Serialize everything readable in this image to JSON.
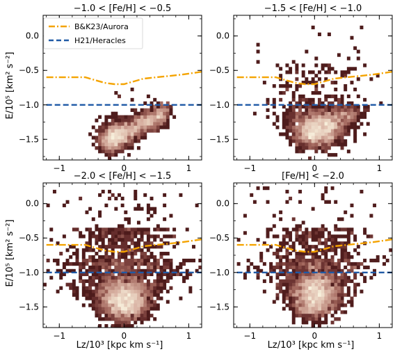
{
  "figure": {
    "shared_xlabel": "Lz/10³ [kpc km s⁻¹]",
    "shared_ylabel": "E/10⁵ [km² s⁻²]"
  },
  "legend": {
    "aurora_label": "B&K23/Aurora",
    "heracles_label": "H21/Heracles"
  },
  "chart_data": [
    {
      "type": "heatmap",
      "title": "−1.0 < [Fe/H] < −0.5",
      "xlabel": "",
      "ylabel": "E/10⁵ [km² s⁻²]",
      "xlim": [
        -1.25,
        1.2
      ],
      "ylim": [
        -1.8,
        0.3
      ],
      "xticks": [
        "−1",
        "0",
        "1"
      ],
      "yticks": [
        "0.0",
        "−0.5",
        "−1.0",
        "−1.5"
      ],
      "grid": false,
      "legend_position": "top-left",
      "series": [
        {
          "name": "B&K23/Aurora",
          "style": "dash-dot",
          "color": "#f4a300",
          "x": [
            -1.2,
            -0.6,
            -0.45,
            -0.3,
            -0.15,
            0.0,
            0.15,
            0.3,
            0.5,
            0.7,
            0.9,
            1.2
          ],
          "y": [
            -0.6,
            -0.6,
            -0.64,
            -0.68,
            -0.7,
            -0.7,
            -0.66,
            -0.62,
            -0.6,
            -0.58,
            -0.56,
            -0.52
          ]
        },
        {
          "name": "H21/Heracles",
          "style": "dashed",
          "color": "#1f5aa6",
          "x": [
            -1.2,
            1.2
          ],
          "y": [
            -1.0,
            -1.0
          ]
        }
      ],
      "density": {
        "mode": "metal_rich_band"
      }
    },
    {
      "type": "heatmap",
      "title": "−1.5 < [Fe/H] < −1.0",
      "xlabel": "",
      "ylabel": "",
      "xlim": [
        -1.25,
        1.2
      ],
      "ylim": [
        -1.8,
        0.3
      ],
      "xticks": [
        "−1",
        "0",
        "1"
      ],
      "yticks": [
        "0.0",
        "−0.5",
        "−1.0",
        "−1.5"
      ],
      "grid": false,
      "series": [
        {
          "name": "B&K23/Aurora",
          "style": "dash-dot",
          "color": "#f4a300",
          "x": [
            -1.2,
            -0.6,
            -0.45,
            -0.3,
            -0.15,
            0.0,
            0.15,
            0.3,
            0.5,
            0.7,
            0.9,
            1.2
          ],
          "y": [
            -0.6,
            -0.6,
            -0.64,
            -0.68,
            -0.7,
            -0.7,
            -0.66,
            -0.62,
            -0.6,
            -0.58,
            -0.56,
            -0.52
          ]
        },
        {
          "name": "H21/Heracles",
          "style": "dashed",
          "color": "#1f5aa6",
          "x": [
            -1.2,
            1.2
          ],
          "y": [
            -1.0,
            -1.0
          ]
        }
      ],
      "density": {
        "mode": "intermediate"
      }
    },
    {
      "type": "heatmap",
      "title": "−2.0 < [Fe/H] < −1.5",
      "xlabel": "Lz/10³ [kpc km s⁻¹]",
      "ylabel": "E/10⁵ [km² s⁻²]",
      "xlim": [
        -1.25,
        1.2
      ],
      "ylim": [
        -1.8,
        0.3
      ],
      "xticks": [
        "−1",
        "0",
        "1"
      ],
      "yticks": [
        "0.0",
        "−0.5",
        "−1.0",
        "−1.5"
      ],
      "grid": false,
      "series": [
        {
          "name": "B&K23/Aurora",
          "style": "dash-dot",
          "color": "#f4a300",
          "x": [
            -1.2,
            -0.6,
            -0.45,
            -0.3,
            -0.15,
            0.0,
            0.15,
            0.3,
            0.5,
            0.7,
            0.9,
            1.2
          ],
          "y": [
            -0.6,
            -0.6,
            -0.64,
            -0.68,
            -0.7,
            -0.7,
            -0.66,
            -0.62,
            -0.6,
            -0.58,
            -0.56,
            -0.52
          ]
        },
        {
          "name": "H21/Heracles",
          "style": "dashed",
          "color": "#1f5aa6",
          "x": [
            -1.2,
            1.2
          ],
          "y": [
            -1.0,
            -1.0
          ]
        }
      ],
      "density": {
        "mode": "metal_poor"
      }
    },
    {
      "type": "heatmap",
      "title": "[Fe/H] < −2.0",
      "xlabel": "Lz/10³ [kpc km s⁻¹]",
      "ylabel": "",
      "xlim": [
        -1.25,
        1.2
      ],
      "ylim": [
        -1.8,
        0.3
      ],
      "xticks": [
        "−1",
        "0",
        "1"
      ],
      "yticks": [
        "0.0",
        "−0.5",
        "−1.0",
        "−1.5"
      ],
      "grid": false,
      "series": [
        {
          "name": "B&K23/Aurora",
          "style": "dash-dot",
          "color": "#f4a300",
          "x": [
            -1.2,
            -0.6,
            -0.45,
            -0.3,
            -0.15,
            0.0,
            0.15,
            0.3,
            0.5,
            0.7,
            0.9,
            1.2
          ],
          "y": [
            -0.6,
            -0.6,
            -0.64,
            -0.68,
            -0.7,
            -0.7,
            -0.66,
            -0.62,
            -0.6,
            -0.58,
            -0.56,
            -0.52
          ]
        },
        {
          "name": "H21/Heracles",
          "style": "dashed",
          "color": "#1f5aa6",
          "x": [
            -1.2,
            1.2
          ],
          "y": [
            -1.0,
            -1.0
          ]
        }
      ],
      "density": {
        "mode": "very_metal_poor"
      }
    }
  ]
}
